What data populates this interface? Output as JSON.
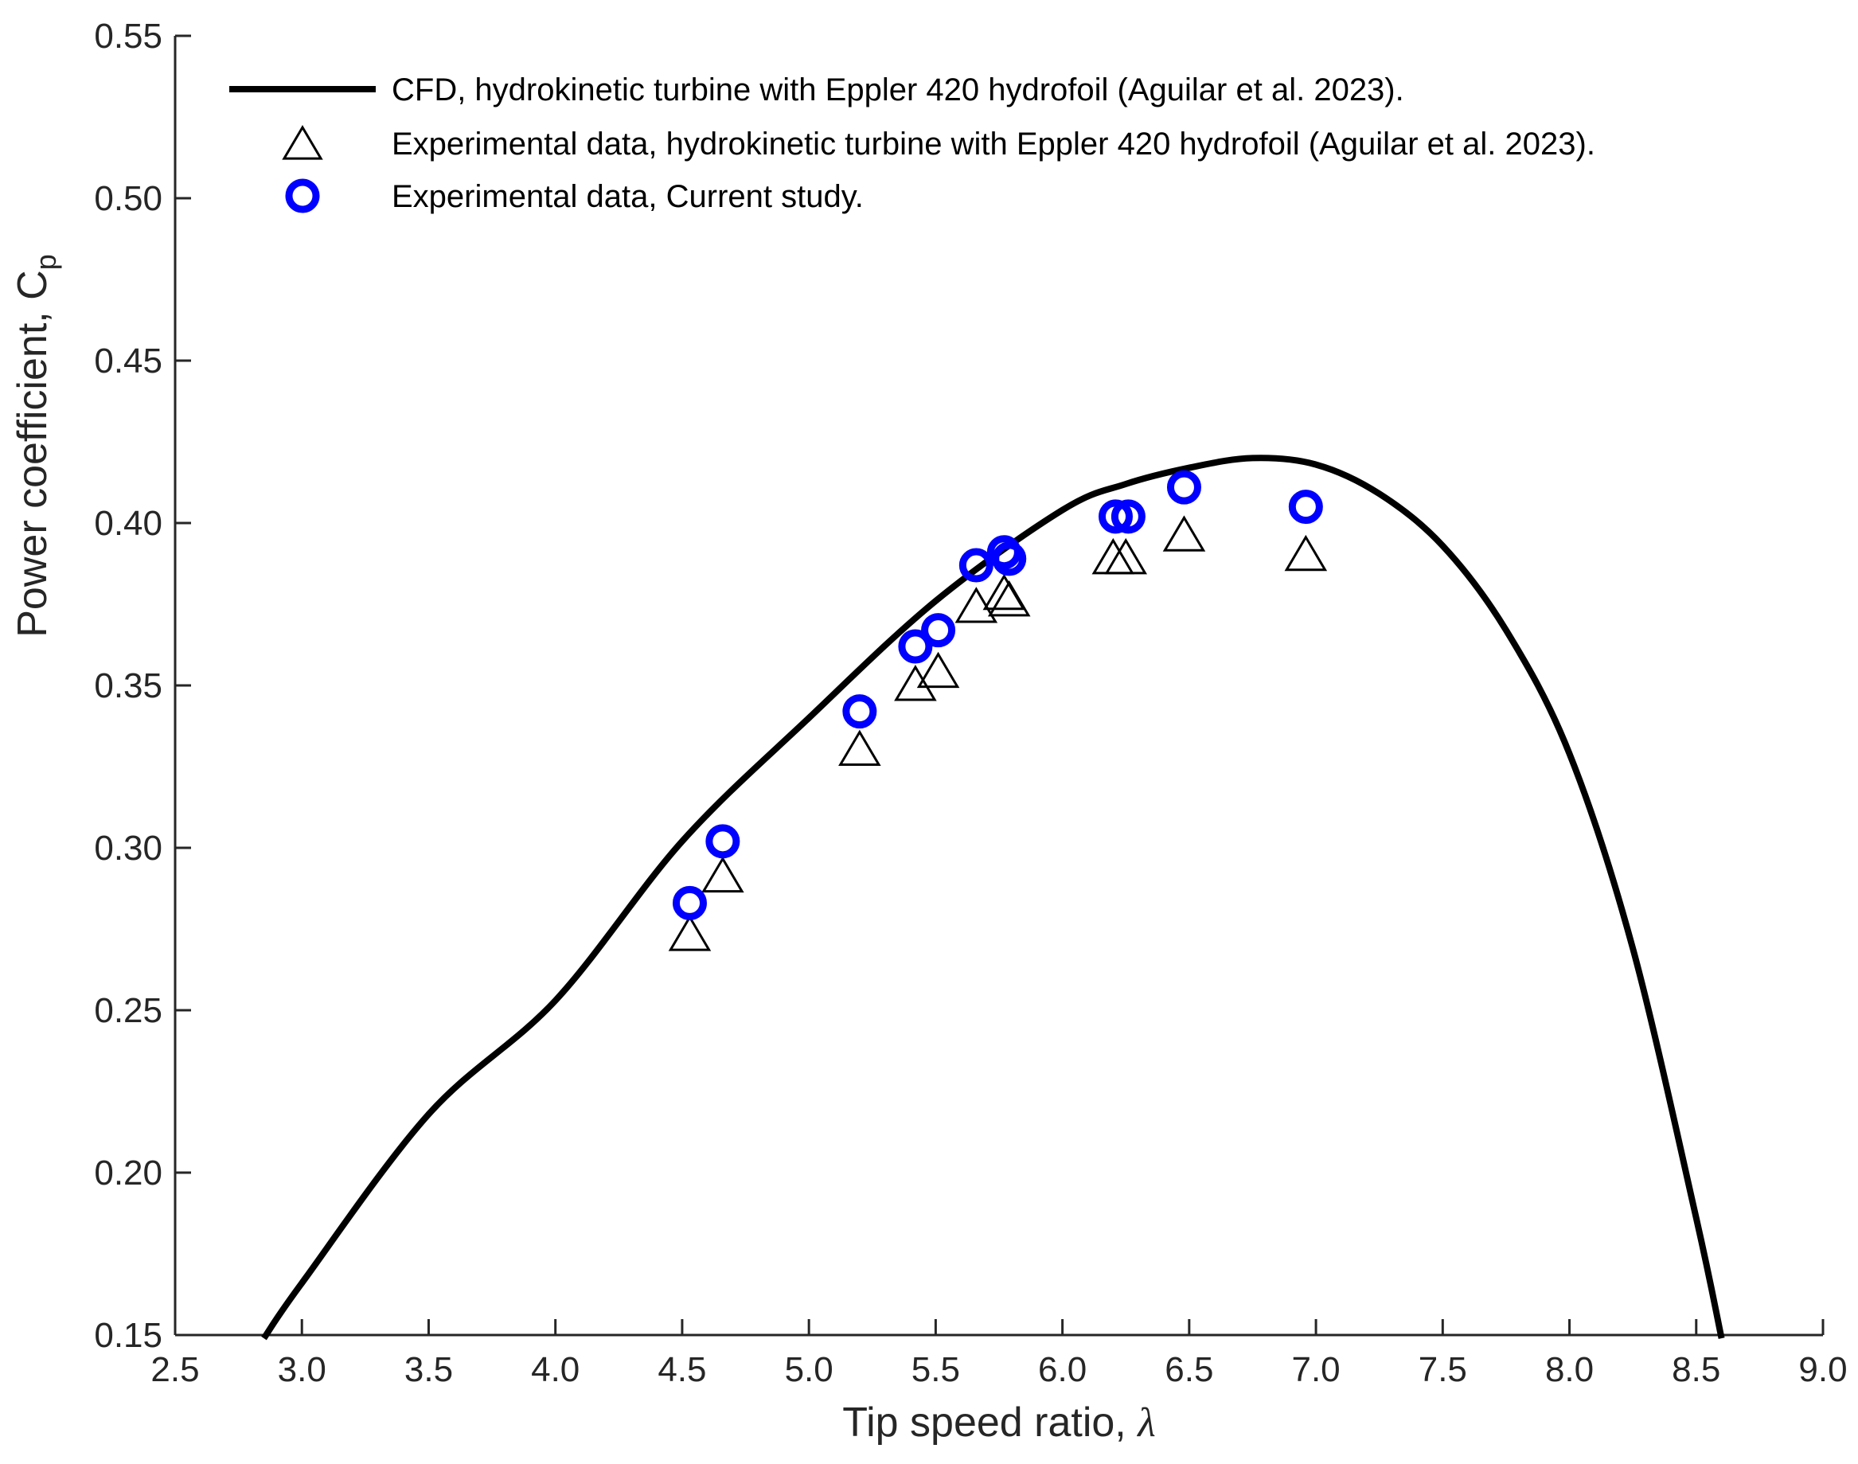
{
  "chart_data": {
    "type": "line",
    "title": "",
    "xlabel": "Tip speed ratio, ",
    "xlabel_symbol": "λ",
    "ylabel": "Power coefficient, C",
    "ylabel_subscript": "p",
    "xlim": [
      2.5,
      9.0
    ],
    "ylim": [
      0.15,
      0.55
    ],
    "x_ticks": [
      "2.5",
      "3.0",
      "3.5",
      "4.0",
      "4.5",
      "5.0",
      "5.5",
      "6.0",
      "6.5",
      "7.0",
      "7.5",
      "8.0",
      "8.5",
      "9.0"
    ],
    "y_ticks": [
      "0.15",
      "0.20",
      "0.25",
      "0.30",
      "0.35",
      "0.40",
      "0.45",
      "0.50",
      "0.55"
    ],
    "grid": false,
    "legend_position": "top-left",
    "series": [
      {
        "name": "CFD, hydrokinetic turbine with Eppler 420 hydrofoil (Aguilar et al. 2023).",
        "kind": "line",
        "color": "#000000",
        "x": [
          2.85,
          3.0,
          3.5,
          4.0,
          4.5,
          5.0,
          5.5,
          6.0,
          6.25,
          6.5,
          6.75,
          7.0,
          7.25,
          7.5,
          7.75,
          8.0,
          8.25,
          8.5,
          8.6
        ],
        "y": [
          0.149,
          0.166,
          0.218,
          0.253,
          0.302,
          0.34,
          0.376,
          0.404,
          0.412,
          0.417,
          0.42,
          0.418,
          0.409,
          0.393,
          0.367,
          0.329,
          0.269,
          0.186,
          0.149
        ]
      },
      {
        "name": "Experimental data, hydrokinetic turbine with Eppler 420 hydrofoil (Aguilar et al. 2023).",
        "kind": "scatter",
        "marker": "triangle",
        "color": "#000000",
        "x": [
          4.53,
          4.66,
          5.2,
          5.42,
          5.51,
          5.66,
          5.77,
          5.79,
          6.2,
          6.25,
          6.48,
          6.96
        ],
        "y": [
          0.273,
          0.291,
          0.33,
          0.35,
          0.354,
          0.374,
          0.378,
          0.376,
          0.389,
          0.389,
          0.396,
          0.39
        ]
      },
      {
        "name": "Experimental data, Current study.",
        "kind": "scatter",
        "marker": "circle",
        "color": "#0000ff",
        "x": [
          4.53,
          4.66,
          5.2,
          5.42,
          5.51,
          5.66,
          5.77,
          5.79,
          6.21,
          6.26,
          6.48,
          6.96
        ],
        "y": [
          0.283,
          0.302,
          0.342,
          0.362,
          0.367,
          0.387,
          0.391,
          0.389,
          0.402,
          0.402,
          0.411,
          0.405
        ]
      }
    ]
  }
}
